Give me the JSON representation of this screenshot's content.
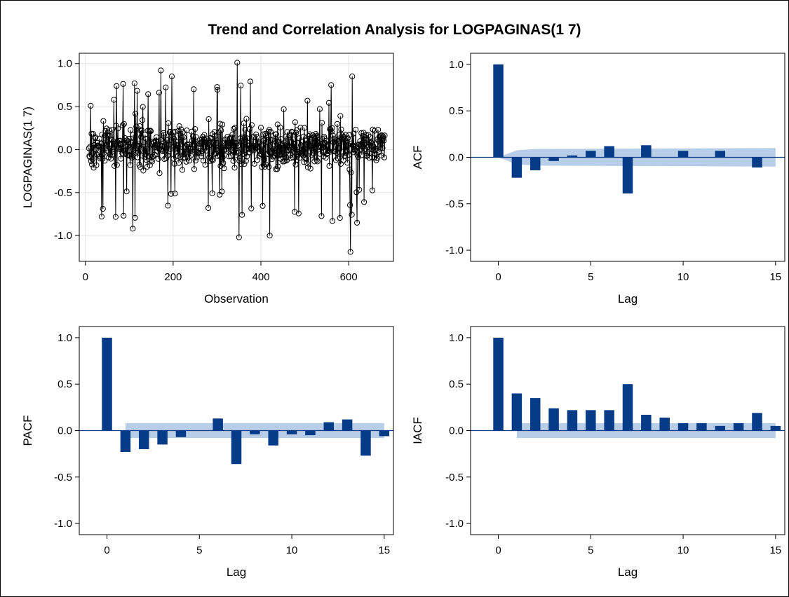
{
  "title": "Trend and Correlation Analysis for LOGPAGINAS(1 7)",
  "colors": {
    "bar": "#063b88",
    "band": "#b8cde8",
    "line": "#000000",
    "grid": "#e4e4e4",
    "frame": "#000000"
  },
  "chart_data": [
    {
      "id": "series",
      "type": "line",
      "xlabel": "Observation",
      "ylabel": "LOGPAGINAS(1 7)",
      "xlim": [
        -14,
        702
      ],
      "ylim": [
        -1.3,
        1.12
      ],
      "xticks": [
        0,
        200,
        400,
        600
      ],
      "yticks": [
        -1.0,
        -0.5,
        0.0,
        0.5,
        1.0
      ],
      "ytick_labels": [
        "-1.0",
        "-0.5",
        "0.0",
        "0.5",
        "1.0"
      ],
      "grid": true,
      "markers": "open-circle",
      "x_start": 8,
      "x_end": 682,
      "n_points": 675,
      "y_range": [
        -1.19,
        1.01
      ],
      "notable_points": [
        {
          "x": 108,
          "y": 0.91
        },
        {
          "x": 108,
          "y": -0.92
        },
        {
          "x": 172,
          "y": 0.92
        },
        {
          "x": 197,
          "y": 0.85
        },
        {
          "x": 346,
          "y": 1.01
        },
        {
          "x": 350,
          "y": -1.02
        },
        {
          "x": 420,
          "y": -1.0
        },
        {
          "x": 608,
          "y": 0.85
        },
        {
          "x": 604,
          "y": -1.19
        },
        {
          "x": 560,
          "y": 0.75
        },
        {
          "x": 563,
          "y": -0.83
        },
        {
          "x": 619,
          "y": -0.85
        }
      ]
    },
    {
      "id": "acf",
      "type": "bar",
      "xlabel": "Lag",
      "ylabel": "ACF",
      "xlim": [
        -1.5,
        15.5
      ],
      "ylim": [
        -1.12,
        1.12
      ],
      "xticks": [
        0,
        5,
        10,
        15
      ],
      "yticks": [
        -1.0,
        -0.5,
        0.0,
        0.5,
        1.0
      ],
      "ytick_labels": [
        "-1.0",
        "-0.5",
        "0.0",
        "0.5",
        "1.0"
      ],
      "lags": [
        0,
        1,
        2,
        3,
        4,
        5,
        6,
        7,
        8,
        9,
        10,
        11,
        12,
        13,
        14,
        15
      ],
      "values": [
        1.0,
        -0.22,
        -0.14,
        -0.04,
        0.02,
        0.07,
        0.12,
        -0.39,
        0.13,
        0.0,
        0.07,
        0.0,
        0.07,
        0.0,
        -0.11,
        0.0
      ],
      "band": {
        "lags": [
          0,
          1,
          2,
          15
        ],
        "upper": [
          0,
          0.075,
          0.09,
          0.1
        ],
        "lower": [
          0,
          -0.075,
          -0.09,
          -0.1
        ]
      }
    },
    {
      "id": "pacf",
      "type": "bar",
      "xlabel": "Lag",
      "ylabel": "PACF",
      "xlim": [
        -1.5,
        15.5
      ],
      "ylim": [
        -1.12,
        1.12
      ],
      "xticks": [
        0,
        5,
        10,
        15
      ],
      "yticks": [
        -1.0,
        -0.5,
        0.0,
        0.5,
        1.0
      ],
      "ytick_labels": [
        "-1.0",
        "-0.5",
        "0.0",
        "0.5",
        "1.0"
      ],
      "lags": [
        0,
        1,
        2,
        3,
        4,
        5,
        6,
        7,
        8,
        9,
        10,
        11,
        12,
        13,
        14,
        15
      ],
      "values": [
        1.0,
        -0.23,
        -0.2,
        -0.15,
        -0.07,
        0.0,
        0.13,
        -0.36,
        -0.04,
        -0.16,
        -0.04,
        -0.05,
        0.09,
        0.12,
        -0.27,
        -0.06
      ],
      "band": {
        "lags": [
          1,
          15
        ],
        "upper": [
          0.08,
          0.08
        ],
        "lower": [
          -0.08,
          -0.08
        ]
      }
    },
    {
      "id": "iacf",
      "type": "bar",
      "xlabel": "Lag",
      "ylabel": "IACF",
      "xlim": [
        -1.5,
        15.5
      ],
      "ylim": [
        -1.12,
        1.12
      ],
      "xticks": [
        0,
        5,
        10,
        15
      ],
      "yticks": [
        -1.0,
        -0.5,
        0.0,
        0.5,
        1.0
      ],
      "ytick_labels": [
        "-1.0",
        "-0.5",
        "0.0",
        "0.5",
        "1.0"
      ],
      "lags": [
        0,
        1,
        2,
        3,
        4,
        5,
        6,
        7,
        8,
        9,
        10,
        11,
        12,
        13,
        14,
        15
      ],
      "values": [
        1.0,
        0.4,
        0.35,
        0.24,
        0.22,
        0.22,
        0.22,
        0.5,
        0.17,
        0.14,
        0.08,
        0.08,
        0.05,
        0.08,
        0.19,
        0.05
      ],
      "band": {
        "lags": [
          1,
          15
        ],
        "upper": [
          0.08,
          0.08
        ],
        "lower": [
          -0.08,
          -0.08
        ]
      }
    }
  ]
}
